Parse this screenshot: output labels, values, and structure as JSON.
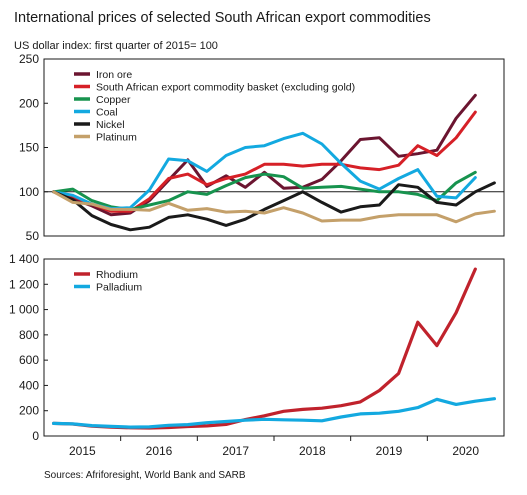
{
  "title": "International prices of selected South African export commodities",
  "subtitle": "US dollar index: first quarter of 2015= 100",
  "source": "Sources: Afriforesight, World Bank and SARB",
  "chart_data": [
    {
      "type": "line",
      "ylim": [
        50,
        250
      ],
      "yticks": [
        "250",
        "200",
        "150",
        "100",
        "50"
      ],
      "reference_line": 100,
      "legend_position": "top-left",
      "x": [
        "2015Q1",
        "2015Q2",
        "2015Q3",
        "2015Q4",
        "2016Q1",
        "2016Q2",
        "2016Q3",
        "2016Q4",
        "2017Q1",
        "2017Q2",
        "2017Q3",
        "2017Q4",
        "2018Q1",
        "2018Q2",
        "2018Q3",
        "2018Q4",
        "2019Q1",
        "2019Q2",
        "2019Q3",
        "2019Q4",
        "2020Q1",
        "2020Q2",
        "2020Q3",
        "2020Q4"
      ],
      "series": [
        {
          "name": "Iron ore",
          "color": "#6b1530",
          "values": [
            100,
            92,
            84,
            74,
            76,
            90,
            113,
            136,
            106,
            118,
            105,
            122,
            104,
            105,
            114,
            135,
            159,
            161,
            140,
            143,
            147,
            183,
            209,
            null
          ]
        },
        {
          "name": "South African export commodity basket (excluding gold)",
          "color": "#d62027",
          "values": [
            100,
            95,
            86,
            78,
            78,
            92,
            115,
            120,
            108,
            115,
            120,
            131,
            131,
            129,
            131,
            131,
            127,
            125,
            130,
            152,
            141,
            161,
            190,
            null
          ]
        },
        {
          "name": "Copper",
          "color": "#17934e",
          "values": [
            100,
            103,
            90,
            83,
            80,
            85,
            90,
            100,
            97,
            107,
            116,
            120,
            117,
            104,
            105,
            106,
            103,
            100,
            100,
            97,
            90,
            110,
            122,
            null
          ]
        },
        {
          "name": "Coal",
          "color": "#13a9e0",
          "values": [
            100,
            96,
            86,
            81,
            82,
            102,
            137,
            135,
            123,
            141,
            150,
            152,
            160,
            166,
            154,
            132,
            112,
            103,
            115,
            125,
            95,
            93,
            116,
            null
          ]
        },
        {
          "name": "Nickel",
          "color": "#1a1a1a",
          "values": [
            100,
            91,
            73,
            63,
            57,
            60,
            71,
            74,
            69,
            62,
            69,
            80,
            90,
            100,
            88,
            77,
            83,
            85,
            108,
            105,
            88,
            85,
            100,
            110
          ]
        },
        {
          "name": "Platinum",
          "color": "#c4a06a",
          "values": [
            100,
            88,
            86,
            80,
            80,
            79,
            87,
            79,
            81,
            77,
            78,
            76,
            82,
            76,
            67,
            68,
            68,
            72,
            74,
            74,
            74,
            66,
            75,
            78
          ]
        }
      ]
    },
    {
      "type": "line",
      "ylim": [
        0,
        1400
      ],
      "yticks": [
        "1 400",
        "1 200",
        "1 000",
        "800",
        "600",
        "400",
        "200",
        "0"
      ],
      "xtick_labels": [
        "2015",
        "2016",
        "2017",
        "2018",
        "2019",
        "2020"
      ],
      "legend_position": "top-left",
      "x": [
        "2015Q1",
        "2015Q2",
        "2015Q3",
        "2015Q4",
        "2016Q1",
        "2016Q2",
        "2016Q3",
        "2016Q4",
        "2017Q1",
        "2017Q2",
        "2017Q3",
        "2017Q4",
        "2018Q1",
        "2018Q2",
        "2018Q3",
        "2018Q4",
        "2019Q1",
        "2019Q2",
        "2019Q3",
        "2019Q4",
        "2020Q1",
        "2020Q2",
        "2020Q3",
        "2020Q4"
      ],
      "series": [
        {
          "name": "Rhodium",
          "color": "#c0222c",
          "values": [
            100,
            95,
            78,
            70,
            65,
            63,
            67,
            75,
            80,
            92,
            130,
            160,
            195,
            210,
            220,
            240,
            270,
            360,
            495,
            900,
            715,
            975,
            1320,
            null
          ]
        },
        {
          "name": "Palladium",
          "color": "#13a9e0",
          "values": [
            100,
            96,
            82,
            76,
            70,
            72,
            85,
            90,
            105,
            115,
            125,
            132,
            128,
            125,
            120,
            150,
            175,
            180,
            195,
            225,
            290,
            250,
            275,
            295
          ]
        }
      ]
    }
  ]
}
